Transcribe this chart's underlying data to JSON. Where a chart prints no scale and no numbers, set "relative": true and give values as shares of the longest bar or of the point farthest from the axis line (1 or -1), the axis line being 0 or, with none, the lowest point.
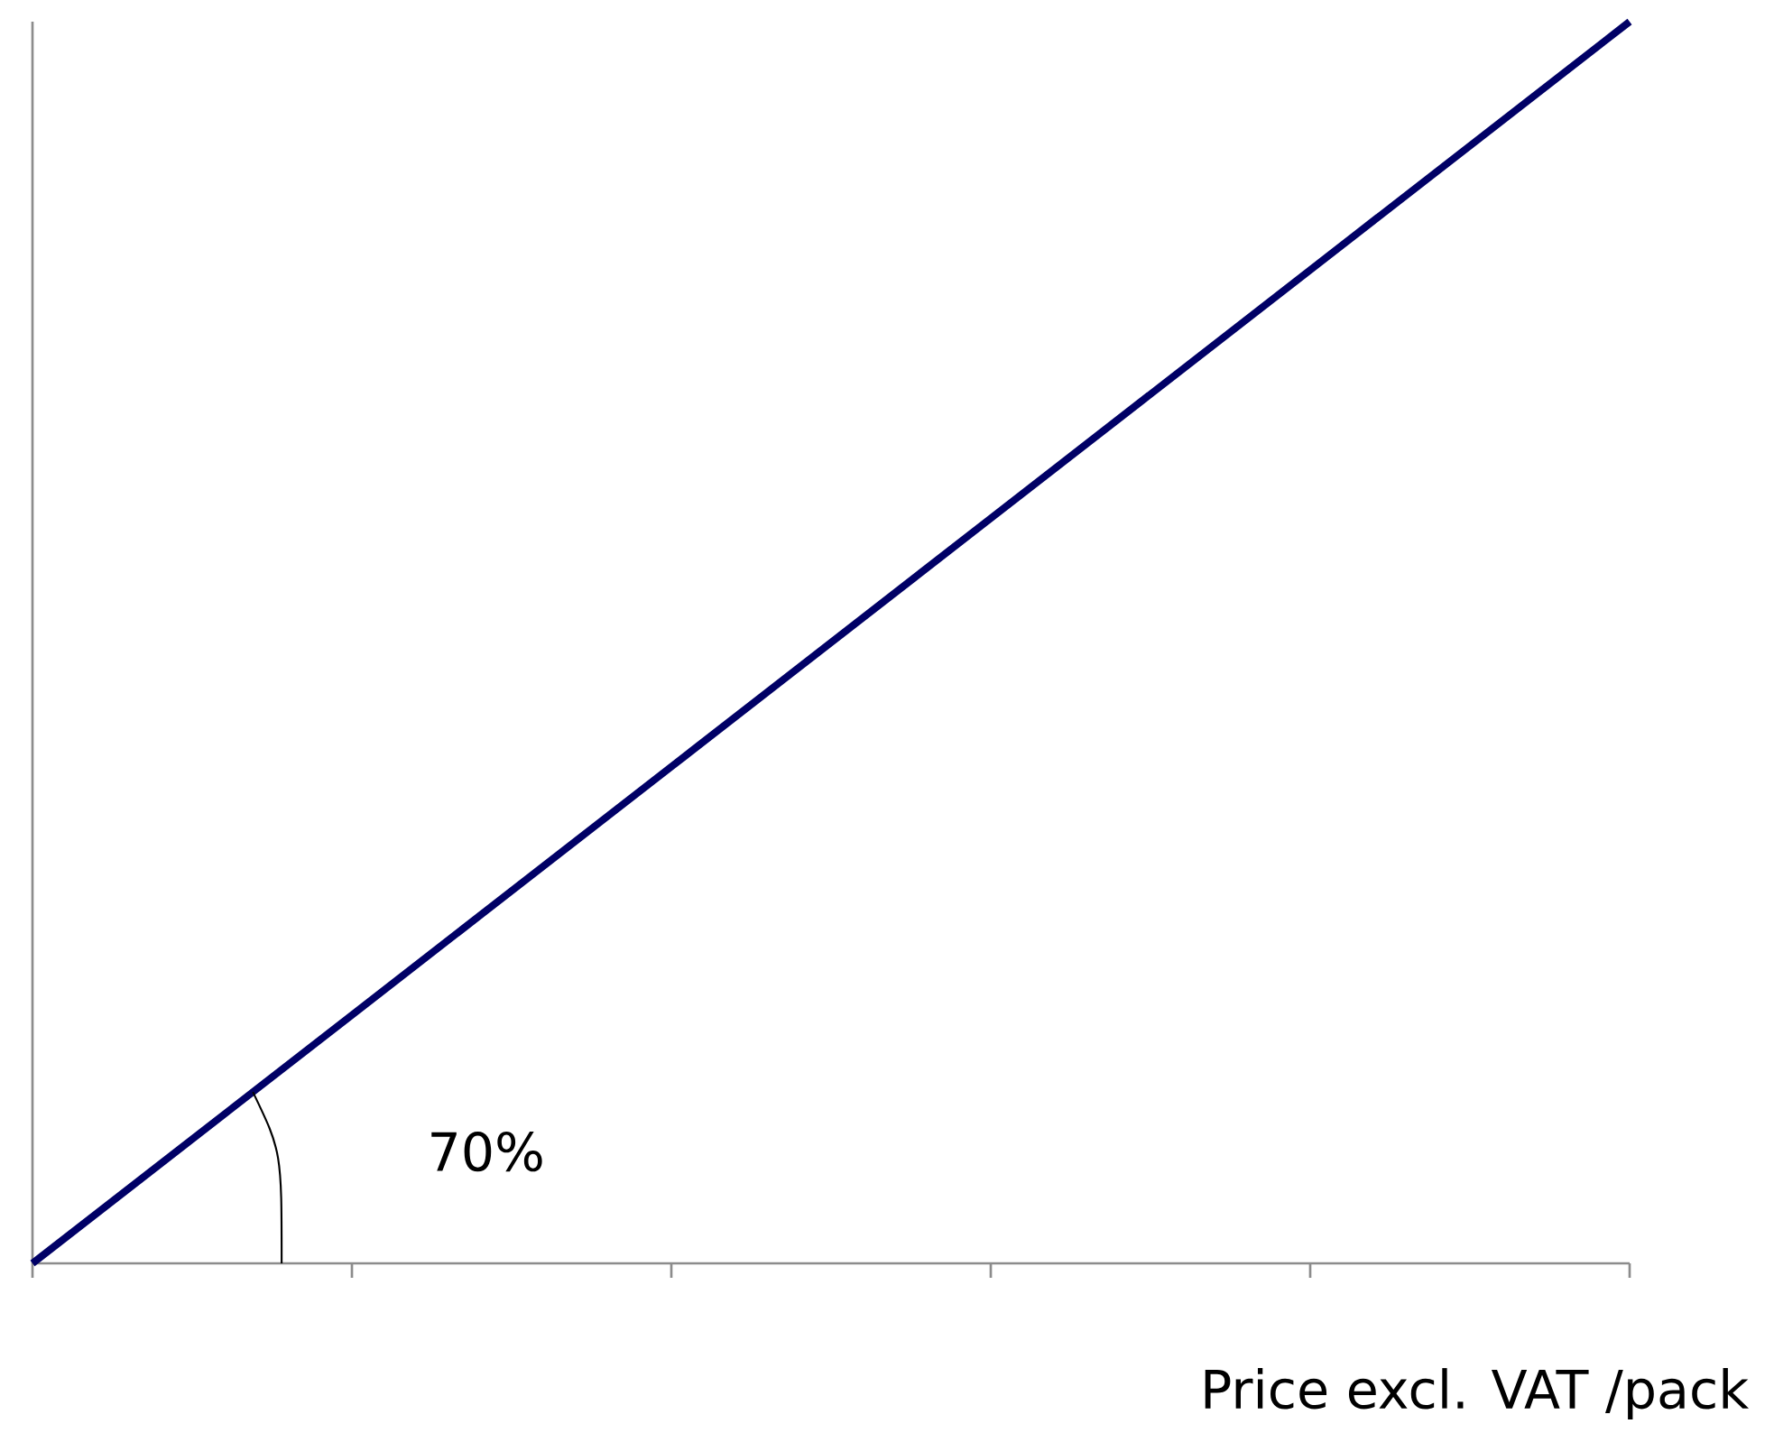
{
  "chart_data": {
    "type": "line",
    "relative": true,
    "xlabel": "Price excl. VAT /pack",
    "categories": [
      null,
      null,
      null,
      null,
      null,
      null
    ],
    "series": [
      {
        "color": "#000066",
        "values": [
          0,
          0.2,
          0.4,
          0.6,
          0.8,
          1
        ]
      }
    ],
    "annotations": [
      "70%"
    ],
    "marker": "none",
    "line_style": "solid"
  }
}
